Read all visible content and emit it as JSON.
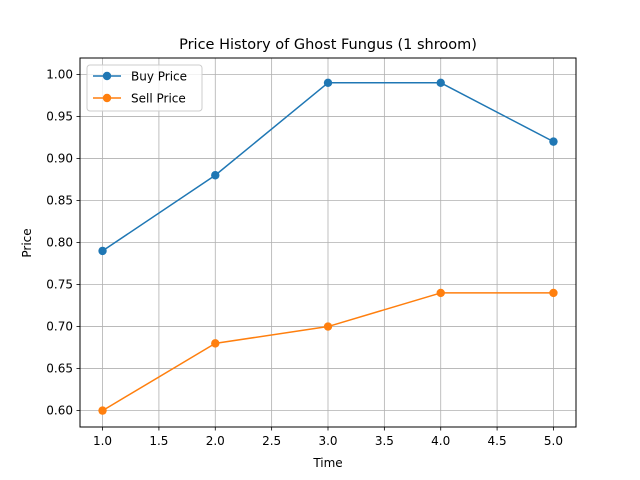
{
  "chart_data": {
    "type": "line",
    "title": "Price History of Ghost Fungus (1 shroom)",
    "xlabel": "Time",
    "ylabel": "Price",
    "x": [
      1,
      2,
      3,
      4,
      5
    ],
    "xlim": [
      0.8,
      5.2
    ],
    "ylim": [
      0.5805,
      1.0195
    ],
    "xticks": [
      "1.0",
      "1.5",
      "2.0",
      "2.5",
      "3.0",
      "3.5",
      "4.0",
      "4.5",
      "5.0"
    ],
    "xtick_values": [
      1.0,
      1.5,
      2.0,
      2.5,
      3.0,
      3.5,
      4.0,
      4.5,
      5.0
    ],
    "yticks": [
      "0.60",
      "0.65",
      "0.70",
      "0.75",
      "0.80",
      "0.85",
      "0.90",
      "0.95",
      "1.00"
    ],
    "ytick_values": [
      0.6,
      0.65,
      0.7,
      0.75,
      0.8,
      0.85,
      0.9,
      0.95,
      1.0
    ],
    "grid": true,
    "legend_position": "top-left",
    "series": [
      {
        "name": "Buy Price",
        "color": "#1f77b4",
        "marker": "circle",
        "values": [
          0.79,
          0.88,
          0.99,
          0.99,
          0.92
        ]
      },
      {
        "name": "Sell Price",
        "color": "#ff7f0e",
        "marker": "circle",
        "values": [
          0.6,
          0.68,
          0.7,
          0.74,
          0.74
        ]
      }
    ]
  }
}
